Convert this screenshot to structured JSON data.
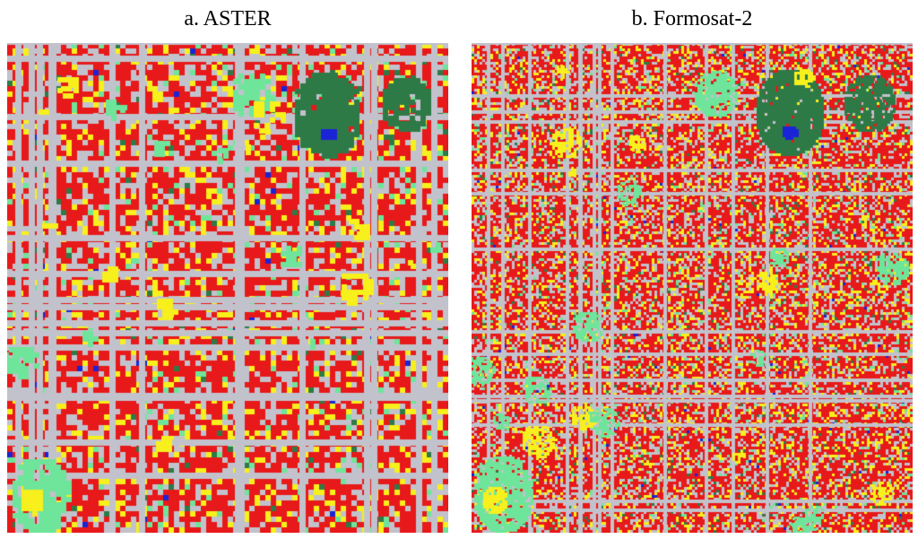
{
  "figure": {
    "panels": [
      {
        "id": "aster",
        "caption": "a. ASTER",
        "texture": "coarse"
      },
      {
        "id": "formosat",
        "caption": "b. Formosat-2",
        "texture": "fine"
      }
    ],
    "palette": {
      "built_up": "#e8191a",
      "road_bare": "#c2c2cc",
      "mixed": "#f7f01c",
      "grass": "#6ee59a",
      "forest": "#2e7a47",
      "water": "#1a24d6"
    }
  }
}
